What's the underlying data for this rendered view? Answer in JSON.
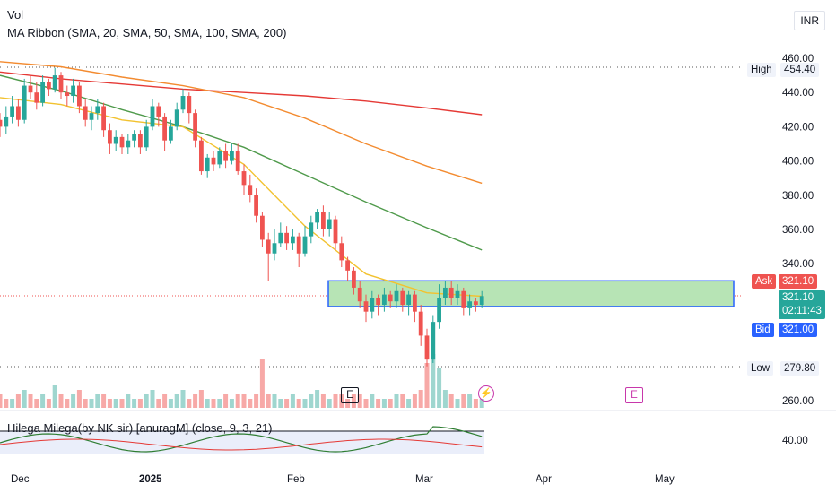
{
  "legend": {
    "vol": "Vol",
    "ma_ribbon": "MA Ribbon (SMA, 20, SMA, 50, SMA, 100, SMA, 200)",
    "indicator": "Hilega Milega(by NK sir) [anuragM] (close, 9, 3, 21)"
  },
  "currency": "INR",
  "price_tags": {
    "high_label": "High",
    "high_value": "454.40",
    "low_label": "Low",
    "low_value": "279.80",
    "ask_label": "Ask",
    "ask_value": "321.10",
    "last_value": "321.10",
    "countdown": "02:11:43",
    "bid_label": "Bid",
    "bid_value": "321.00"
  },
  "event_markers": [
    "E",
    "E"
  ],
  "colors": {
    "up": "#26a69a",
    "down": "#ef5350",
    "vol_up": "#9fd6cf",
    "vol_down": "#f7a9a7",
    "sma20": "#f2c230",
    "sma50": "#4f9a4b",
    "sma100": "#f38b30",
    "sma200": "#e53935",
    "box_fill": "#b7e4b5",
    "box_border": "#2962ff"
  },
  "chart_data": {
    "type": "candlestick",
    "x_ticks": [
      "Dec",
      "2025",
      "Feb",
      "Mar",
      "Apr",
      "May"
    ],
    "y_ticks": [
      "460.00",
      "440.00",
      "420.00",
      "400.00",
      "380.00",
      "360.00",
      "340.00",
      "260.00"
    ],
    "ylim": [
      250,
      462
    ],
    "indicator_y_ticks": [
      "40.00"
    ],
    "candles": [
      [
        424,
        420,
        428,
        414
      ],
      [
        420,
        426,
        432,
        416
      ],
      [
        426,
        432,
        438,
        422
      ],
      [
        432,
        424,
        436,
        420
      ],
      [
        424,
        444,
        448,
        422
      ],
      [
        444,
        440,
        450,
        436
      ],
      [
        440,
        434,
        446,
        430
      ],
      [
        434,
        446,
        450,
        432
      ],
      [
        446,
        442,
        448,
        438
      ],
      [
        442,
        450,
        454.4,
        440
      ],
      [
        450,
        440,
        452,
        436
      ],
      [
        440,
        438,
        444,
        432
      ],
      [
        438,
        444,
        448,
        434
      ],
      [
        444,
        432,
        446,
        428
      ],
      [
        432,
        424,
        436,
        420
      ],
      [
        424,
        428,
        432,
        418
      ],
      [
        428,
        432,
        436,
        424
      ],
      [
        432,
        418,
        434,
        414
      ],
      [
        418,
        410,
        422,
        404
      ],
      [
        410,
        414,
        418,
        406
      ],
      [
        414,
        408,
        416,
        404
      ],
      [
        408,
        412,
        416,
        404
      ],
      [
        412,
        416,
        418,
        408
      ],
      [
        416,
        408,
        418,
        404
      ],
      [
        408,
        420,
        424,
        406
      ],
      [
        420,
        432,
        436,
        418
      ],
      [
        432,
        426,
        434,
        420
      ],
      [
        426,
        412,
        428,
        406
      ],
      [
        412,
        420,
        424,
        410
      ],
      [
        420,
        430,
        434,
        418
      ],
      [
        430,
        438,
        442,
        428
      ],
      [
        438,
        428,
        440,
        422
      ],
      [
        428,
        412,
        430,
        408
      ],
      [
        412,
        394,
        414,
        392
      ],
      [
        394,
        402,
        404,
        390
      ],
      [
        402,
        398,
        406,
        394
      ],
      [
        398,
        406,
        408,
        396
      ],
      [
        406,
        400,
        410,
        396
      ],
      [
        400,
        406,
        410,
        398
      ],
      [
        406,
        394,
        410,
        392
      ],
      [
        394,
        386,
        398,
        380
      ],
      [
        386,
        380,
        392,
        376
      ],
      [
        380,
        368,
        384,
        364
      ],
      [
        368,
        354,
        370,
        350
      ],
      [
        354,
        346,
        358,
        330
      ],
      [
        346,
        352,
        360,
        342
      ],
      [
        352,
        358,
        364,
        350
      ],
      [
        358,
        352,
        362,
        348
      ],
      [
        352,
        356,
        360,
        348
      ],
      [
        356,
        346,
        358,
        338
      ],
      [
        346,
        356,
        362,
        344
      ],
      [
        356,
        364,
        368,
        352
      ],
      [
        364,
        370,
        372,
        360
      ],
      [
        370,
        360,
        374,
        356
      ],
      [
        360,
        366,
        370,
        356
      ],
      [
        366,
        352,
        368,
        348
      ],
      [
        352,
        342,
        356,
        338
      ],
      [
        342,
        336,
        344,
        330
      ],
      [
        336,
        326,
        338,
        322
      ],
      [
        326,
        318,
        330,
        314
      ],
      [
        318,
        312,
        322,
        306
      ],
      [
        312,
        320,
        324,
        308
      ],
      [
        320,
        316,
        322,
        310
      ],
      [
        316,
        322,
        326,
        312
      ],
      [
        322,
        318,
        324,
        314
      ],
      [
        318,
        324,
        328,
        314
      ],
      [
        324,
        316,
        326,
        312
      ],
      [
        316,
        322,
        324,
        310
      ],
      [
        322,
        312,
        324,
        306
      ],
      [
        312,
        298,
        316,
        292
      ],
      [
        298,
        284,
        302,
        280
      ],
      [
        284,
        306,
        310,
        282
      ],
      [
        306,
        320,
        328,
        302
      ],
      [
        320,
        326,
        330,
        316
      ],
      [
        326,
        320,
        330,
        316
      ],
      [
        320,
        324,
        328,
        316
      ],
      [
        324,
        314,
        326,
        310
      ],
      [
        314,
        318,
        322,
        310
      ],
      [
        318,
        316,
        320,
        312
      ],
      [
        316,
        321.1,
        324,
        314
      ]
    ],
    "volume": [
      [
        1,
        3
      ],
      [
        1,
        2
      ],
      [
        0,
        2
      ],
      [
        1,
        3
      ],
      [
        0,
        4
      ],
      [
        1,
        3
      ],
      [
        1,
        2
      ],
      [
        0,
        3
      ],
      [
        1,
        2
      ],
      [
        0,
        5
      ],
      [
        1,
        3
      ],
      [
        1,
        2
      ],
      [
        0,
        3
      ],
      [
        1,
        4
      ],
      [
        1,
        2
      ],
      [
        0,
        2
      ],
      [
        0,
        3
      ],
      [
        1,
        3
      ],
      [
        1,
        2
      ],
      [
        0,
        2
      ],
      [
        1,
        2
      ],
      [
        0,
        3
      ],
      [
        0,
        2
      ],
      [
        1,
        2
      ],
      [
        0,
        3
      ],
      [
        0,
        4
      ],
      [
        1,
        2
      ],
      [
        1,
        3
      ],
      [
        0,
        2
      ],
      [
        0,
        3
      ],
      [
        0,
        4
      ],
      [
        1,
        2
      ],
      [
        1,
        3
      ],
      [
        1,
        4
      ],
      [
        0,
        2
      ],
      [
        1,
        2
      ],
      [
        0,
        2
      ],
      [
        1,
        3
      ],
      [
        0,
        2
      ],
      [
        1,
        3
      ],
      [
        1,
        3
      ],
      [
        1,
        2
      ],
      [
        1,
        3
      ],
      [
        1,
        11
      ],
      [
        1,
        3
      ],
      [
        0,
        3
      ],
      [
        0,
        2
      ],
      [
        1,
        2
      ],
      [
        0,
        3
      ],
      [
        1,
        2
      ],
      [
        0,
        2
      ],
      [
        0,
        3
      ],
      [
        0,
        4
      ],
      [
        1,
        3
      ],
      [
        0,
        2
      ],
      [
        1,
        3
      ],
      [
        1,
        3
      ],
      [
        1,
        2
      ],
      [
        1,
        3
      ],
      [
        1,
        3
      ],
      [
        1,
        2
      ],
      [
        0,
        3
      ],
      [
        1,
        2
      ],
      [
        0,
        2
      ],
      [
        1,
        2
      ],
      [
        0,
        3
      ],
      [
        1,
        3
      ],
      [
        0,
        2
      ],
      [
        1,
        3
      ],
      [
        1,
        4
      ],
      [
        1,
        10
      ],
      [
        0,
        12
      ],
      [
        0,
        9
      ],
      [
        0,
        4
      ],
      [
        1,
        3
      ],
      [
        0,
        2
      ],
      [
        1,
        3
      ],
      [
        0,
        3
      ],
      [
        1,
        2
      ],
      [
        0,
        2
      ]
    ],
    "sma20": [
      [
        0,
        437
      ],
      [
        10,
        433
      ],
      [
        20,
        424
      ],
      [
        30,
        420
      ],
      [
        40,
        398
      ],
      [
        50,
        362
      ],
      [
        60,
        334
      ],
      [
        70,
        323
      ],
      [
        79,
        321
      ]
    ],
    "sma50": [
      [
        0,
        450
      ],
      [
        10,
        441
      ],
      [
        20,
        430
      ],
      [
        30,
        420
      ],
      [
        40,
        408
      ],
      [
        50,
        392
      ],
      [
        60,
        376
      ],
      [
        70,
        361
      ],
      [
        79,
        348
      ]
    ],
    "sma100": [
      [
        0,
        458
      ],
      [
        10,
        455
      ],
      [
        20,
        449
      ],
      [
        30,
        444
      ],
      [
        40,
        437
      ],
      [
        50,
        425
      ],
      [
        60,
        410
      ],
      [
        70,
        397
      ],
      [
        79,
        387
      ]
    ],
    "sma200": [
      [
        0,
        452
      ],
      [
        10,
        448
      ],
      [
        20,
        445
      ],
      [
        30,
        442
      ],
      [
        40,
        440
      ],
      [
        50,
        438
      ],
      [
        60,
        435
      ],
      [
        70,
        431
      ],
      [
        79,
        427
      ]
    ],
    "zone": {
      "x_start": 57,
      "x_end": 92,
      "y_low": 315,
      "y_high": 330
    }
  }
}
